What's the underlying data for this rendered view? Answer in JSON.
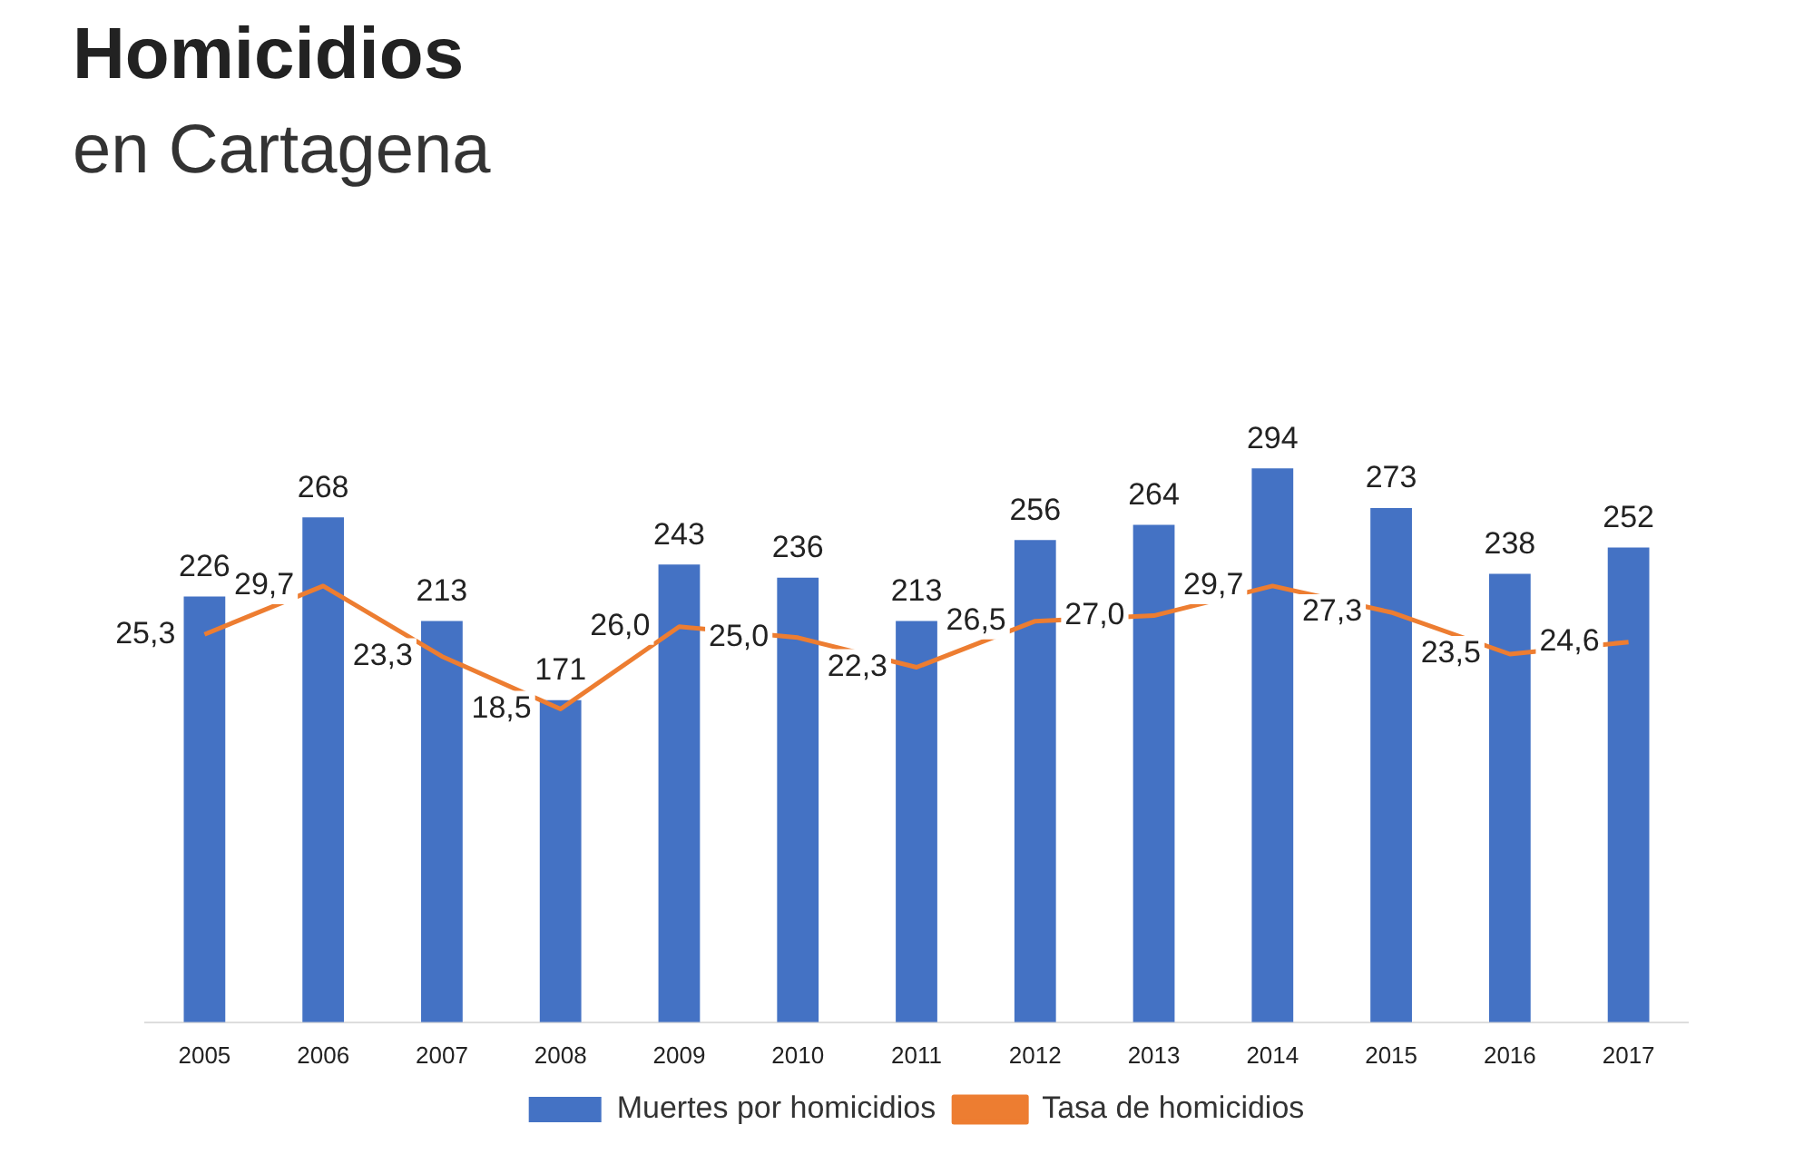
{
  "chart_data": {
    "type": "bar",
    "title": "Homicidios",
    "subtitle": "en Cartagena",
    "categories": [
      "2005",
      "2006",
      "2007",
      "2008",
      "2009",
      "2010",
      "2011",
      "2012",
      "2013",
      "2014",
      "2015",
      "2016",
      "2017"
    ],
    "series": [
      {
        "name": "Muertes por homicidios",
        "color": "#4472c4",
        "values": [
          226,
          268,
          213,
          171,
          243,
          236,
          213,
          256,
          264,
          294,
          273,
          238,
          252
        ],
        "value_labels": [
          "226",
          "268",
          "213",
          "171",
          "243",
          "236",
          "213",
          "256",
          "264",
          "294",
          "273",
          "238",
          "252"
        ]
      },
      {
        "name": "Tasa de homicidios",
        "type": "line",
        "axis": "y2",
        "color": "#ed7d31",
        "values": [
          25.3,
          29.7,
          23.3,
          18.5,
          26.0,
          25.0,
          22.3,
          26.5,
          27.0,
          29.7,
          27.3,
          23.5,
          24.6
        ],
        "value_labels": [
          "25,3",
          "29,7",
          "23,3",
          "18,5",
          "26,0",
          "25,0",
          "22,3",
          "26,5",
          "27,0",
          "29,7",
          "27,3",
          "23,5",
          "24,6"
        ]
      }
    ],
    "tick_labels": "x",
    "grid": false,
    "legend": "bottom",
    "marker": "none",
    "line_style": "solid"
  }
}
